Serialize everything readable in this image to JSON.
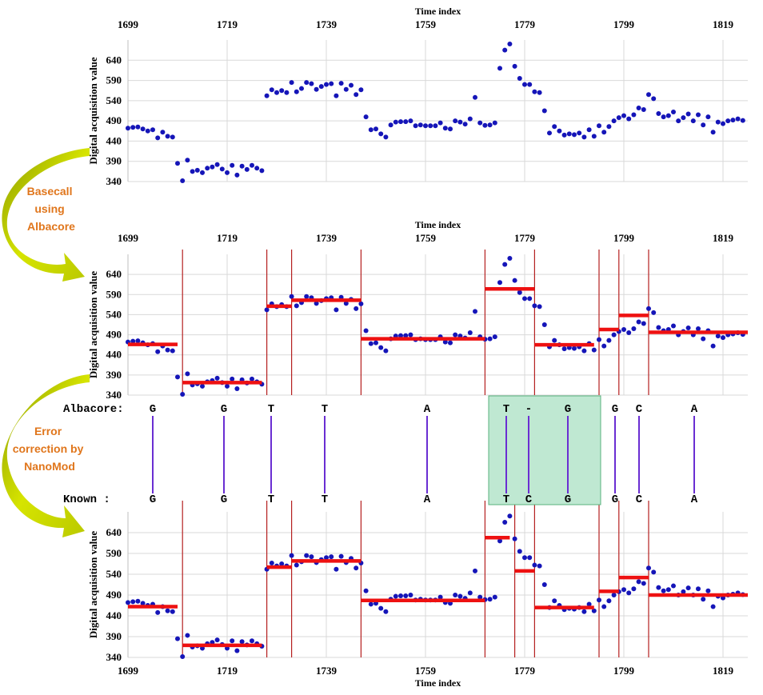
{
  "colors": {
    "points": "#1515b8",
    "segment": "#ee1111",
    "boundary": "#b52020",
    "grid": "#d9d9d9",
    "link": "#6a2ed2",
    "highlight_fill": "#bfe8d2",
    "highlight_stroke": "#58b27d",
    "arrow": "#c4d600",
    "annotation": "#e0761c"
  },
  "annotations": {
    "basecall": [
      "Basecall",
      "using",
      "Albacore"
    ],
    "correction": [
      "Error",
      "correction by",
      "NanoMod"
    ]
  },
  "sequences": {
    "albacore_label": "Albacore:",
    "known_label": "Known   :",
    "albacore": [
      "G",
      "G",
      "T",
      "T",
      "A",
      "T",
      "-",
      "G",
      "G",
      "C",
      "A"
    ],
    "known": [
      "G",
      "G",
      "T",
      "T",
      "A",
      "T",
      "C",
      "G",
      "G",
      "C",
      "A"
    ]
  },
  "chart_data": [
    {
      "type": "scatter",
      "xlabel": "Time index",
      "ylabel": "Digital acquisition value",
      "x_ticks": [
        1699,
        1719,
        1739,
        1759,
        1779,
        1799,
        1819
      ],
      "y_ticks": [
        340,
        390,
        440,
        490,
        540,
        590,
        640
      ],
      "xlim": [
        1699,
        1824
      ],
      "ylim": [
        340,
        690
      ],
      "grid": true,
      "series": [
        {
          "x": [
            1699,
            1700,
            1701,
            1702,
            1703,
            1704,
            1705,
            1706,
            1707,
            1708,
            1709,
            1710,
            1711,
            1712,
            1713,
            1714,
            1715,
            1716,
            1717,
            1718,
            1719,
            1720,
            1721,
            1722,
            1723,
            1724,
            1725,
            1726,
            1727,
            1728,
            1729,
            1730,
            1731,
            1732,
            1733,
            1734,
            1735,
            1736,
            1737,
            1738,
            1739,
            1740,
            1741,
            1742,
            1743,
            1744,
            1745,
            1746,
            1747,
            1748,
            1749,
            1750,
            1751,
            1752,
            1753,
            1754,
            1755,
            1756,
            1757,
            1758,
            1759,
            1760,
            1761,
            1762,
            1763,
            1764,
            1765,
            1766,
            1767,
            1768,
            1769,
            1770,
            1771,
            1772,
            1773,
            1774,
            1775,
            1776,
            1777,
            1778,
            1779,
            1780,
            1781,
            1782,
            1783,
            1784,
            1785,
            1786,
            1787,
            1788,
            1789,
            1790,
            1791,
            1792,
            1793,
            1794,
            1795,
            1796,
            1797,
            1798,
            1799,
            1800,
            1801,
            1802,
            1803,
            1804,
            1805,
            1806,
            1807,
            1808,
            1809,
            1810,
            1811,
            1812,
            1813,
            1814,
            1815,
            1816,
            1817,
            1818,
            1819,
            1820,
            1821,
            1822,
            1823
          ],
          "y": [
            472,
            474,
            475,
            470,
            465,
            468,
            448,
            462,
            452,
            450,
            385,
            342,
            393,
            365,
            368,
            362,
            373,
            376,
            382,
            371,
            362,
            380,
            356,
            378,
            370,
            380,
            373,
            367,
            552,
            567,
            560,
            565,
            560,
            585,
            562,
            570,
            585,
            582,
            568,
            575,
            580,
            582,
            552,
            583,
            568,
            578,
            555,
            567,
            500,
            468,
            470,
            458,
            450,
            480,
            487,
            488,
            488,
            490,
            478,
            480,
            478,
            478,
            478,
            485,
            472,
            470,
            490,
            487,
            482,
            495,
            548,
            485,
            479,
            480,
            485,
            620,
            665,
            680,
            625,
            595,
            580,
            580,
            562,
            560,
            515,
            460,
            476,
            465,
            455,
            458,
            456,
            460,
            450,
            468,
            452,
            478,
            462,
            476,
            490,
            498,
            503,
            495,
            505,
            522,
            518,
            555,
            545,
            508,
            500,
            503,
            512,
            490,
            498,
            507,
            490,
            505,
            480,
            500,
            462,
            487,
            483,
            490,
            492,
            495,
            491
          ]
        }
      ]
    },
    {
      "type": "scatter",
      "xlabel": "Time index",
      "ylabel": "Digital acquisition value",
      "x_ticks": [
        1699,
        1719,
        1739,
        1759,
        1779,
        1799,
        1819
      ],
      "y_ticks": [
        340,
        390,
        440,
        490,
        540,
        590,
        640
      ],
      "xlim": [
        1699,
        1824
      ],
      "ylim": [
        340,
        690
      ],
      "grid": true,
      "boundaries": [
        1710,
        1727,
        1732,
        1746,
        1771,
        1781,
        1794,
        1798,
        1804
      ],
      "segments": [
        {
          "x": [
            1699,
            1709
          ],
          "y": 466
        },
        {
          "x": [
            1710,
            1726
          ],
          "y": 371
        },
        {
          "x": [
            1727,
            1732
          ],
          "y": 561
        },
        {
          "x": [
            1732,
            1746
          ],
          "y": 576
        },
        {
          "x": [
            1746,
            1771
          ],
          "y": 480
        },
        {
          "x": [
            1771,
            1781
          ],
          "y": 604
        },
        {
          "x": [
            1781,
            1793
          ],
          "y": 465
        },
        {
          "x": [
            1794,
            1798
          ],
          "y": 503
        },
        {
          "x": [
            1798,
            1804
          ],
          "y": 538
        },
        {
          "x": [
            1804,
            1824
          ],
          "y": 496
        }
      ],
      "series": [
        {
          "x": [
            1699,
            1700,
            1701,
            1702,
            1703,
            1704,
            1705,
            1706,
            1707,
            1708,
            1709,
            1710,
            1711,
            1712,
            1713,
            1714,
            1715,
            1716,
            1717,
            1718,
            1719,
            1720,
            1721,
            1722,
            1723,
            1724,
            1725,
            1726,
            1727,
            1728,
            1729,
            1730,
            1731,
            1732,
            1733,
            1734,
            1735,
            1736,
            1737,
            1738,
            1739,
            1740,
            1741,
            1742,
            1743,
            1744,
            1745,
            1746,
            1747,
            1748,
            1749,
            1750,
            1751,
            1752,
            1753,
            1754,
            1755,
            1756,
            1757,
            1758,
            1759,
            1760,
            1761,
            1762,
            1763,
            1764,
            1765,
            1766,
            1767,
            1768,
            1769,
            1770,
            1771,
            1772,
            1773,
            1774,
            1775,
            1776,
            1777,
            1778,
            1779,
            1780,
            1781,
            1782,
            1783,
            1784,
            1785,
            1786,
            1787,
            1788,
            1789,
            1790,
            1791,
            1792,
            1793,
            1794,
            1795,
            1796,
            1797,
            1798,
            1799,
            1800,
            1801,
            1802,
            1803,
            1804,
            1805,
            1806,
            1807,
            1808,
            1809,
            1810,
            1811,
            1812,
            1813,
            1814,
            1815,
            1816,
            1817,
            1818,
            1819,
            1820,
            1821,
            1822,
            1823
          ],
          "y": [
            472,
            474,
            475,
            470,
            465,
            468,
            448,
            462,
            452,
            450,
            385,
            342,
            393,
            365,
            368,
            362,
            373,
            376,
            382,
            371,
            362,
            380,
            356,
            378,
            370,
            380,
            373,
            367,
            552,
            567,
            560,
            565,
            560,
            585,
            562,
            570,
            585,
            582,
            568,
            575,
            580,
            582,
            552,
            583,
            568,
            578,
            555,
            567,
            500,
            468,
            470,
            458,
            450,
            480,
            487,
            488,
            488,
            490,
            478,
            480,
            478,
            478,
            478,
            485,
            472,
            470,
            490,
            487,
            482,
            495,
            548,
            485,
            479,
            480,
            485,
            620,
            665,
            680,
            625,
            595,
            580,
            580,
            562,
            560,
            515,
            460,
            476,
            465,
            455,
            458,
            456,
            460,
            450,
            468,
            452,
            478,
            462,
            476,
            490,
            498,
            503,
            495,
            505,
            522,
            518,
            555,
            545,
            508,
            500,
            503,
            512,
            490,
            498,
            507,
            490,
            505,
            480,
            500,
            462,
            487,
            483,
            490,
            492,
            495,
            491
          ]
        }
      ]
    },
    {
      "type": "scatter",
      "xlabel": "Time index",
      "ylabel": "Digital acquisition value",
      "x_ticks": [
        1699,
        1719,
        1739,
        1759,
        1779,
        1799,
        1819
      ],
      "y_ticks": [
        340,
        390,
        440,
        490,
        540,
        590,
        640
      ],
      "xlim": [
        1699,
        1824
      ],
      "ylim": [
        340,
        690
      ],
      "grid": true,
      "boundaries": [
        1710,
        1727,
        1732,
        1746,
        1771,
        1777,
        1781,
        1794,
        1798,
        1804
      ],
      "segments": [
        {
          "x": [
            1699,
            1709
          ],
          "y": 462
        },
        {
          "x": [
            1710,
            1726
          ],
          "y": 369
        },
        {
          "x": [
            1727,
            1732
          ],
          "y": 557
        },
        {
          "x": [
            1732,
            1746
          ],
          "y": 572
        },
        {
          "x": [
            1746,
            1771
          ],
          "y": 477
        },
        {
          "x": [
            1771,
            1776
          ],
          "y": 628
        },
        {
          "x": [
            1777,
            1781
          ],
          "y": 548
        },
        {
          "x": [
            1781,
            1793
          ],
          "y": 460
        },
        {
          "x": [
            1794,
            1798
          ],
          "y": 499
        },
        {
          "x": [
            1798,
            1804
          ],
          "y": 532
        },
        {
          "x": [
            1804,
            1824
          ],
          "y": 490
        }
      ],
      "series": [
        {
          "x": [
            1699,
            1700,
            1701,
            1702,
            1703,
            1704,
            1705,
            1706,
            1707,
            1708,
            1709,
            1710,
            1711,
            1712,
            1713,
            1714,
            1715,
            1716,
            1717,
            1718,
            1719,
            1720,
            1721,
            1722,
            1723,
            1724,
            1725,
            1726,
            1727,
            1728,
            1729,
            1730,
            1731,
            1732,
            1733,
            1734,
            1735,
            1736,
            1737,
            1738,
            1739,
            1740,
            1741,
            1742,
            1743,
            1744,
            1745,
            1746,
            1747,
            1748,
            1749,
            1750,
            1751,
            1752,
            1753,
            1754,
            1755,
            1756,
            1757,
            1758,
            1759,
            1760,
            1761,
            1762,
            1763,
            1764,
            1765,
            1766,
            1767,
            1768,
            1769,
            1770,
            1771,
            1772,
            1773,
            1774,
            1775,
            1776,
            1777,
            1778,
            1779,
            1780,
            1781,
            1782,
            1783,
            1784,
            1785,
            1786,
            1787,
            1788,
            1789,
            1790,
            1791,
            1792,
            1793,
            1794,
            1795,
            1796,
            1797,
            1798,
            1799,
            1800,
            1801,
            1802,
            1803,
            1804,
            1805,
            1806,
            1807,
            1808,
            1809,
            1810,
            1811,
            1812,
            1813,
            1814,
            1815,
            1816,
            1817,
            1818,
            1819,
            1820,
            1821,
            1822,
            1823
          ],
          "y": [
            472,
            474,
            475,
            470,
            465,
            468,
            448,
            462,
            452,
            450,
            385,
            342,
            393,
            365,
            368,
            362,
            373,
            376,
            382,
            371,
            362,
            380,
            356,
            378,
            370,
            380,
            373,
            367,
            552,
            567,
            560,
            565,
            560,
            585,
            562,
            570,
            585,
            582,
            568,
            575,
            580,
            582,
            552,
            583,
            568,
            578,
            555,
            567,
            500,
            468,
            470,
            458,
            450,
            480,
            487,
            488,
            488,
            490,
            478,
            480,
            478,
            478,
            478,
            485,
            472,
            470,
            490,
            487,
            482,
            495,
            548,
            485,
            479,
            480,
            485,
            620,
            665,
            680,
            625,
            595,
            580,
            580,
            562,
            560,
            515,
            460,
            476,
            465,
            455,
            458,
            456,
            460,
            450,
            468,
            452,
            478,
            462,
            476,
            490,
            498,
            503,
            495,
            505,
            522,
            518,
            555,
            545,
            508,
            500,
            503,
            512,
            490,
            498,
            507,
            490,
            505,
            480,
            500,
            462,
            487,
            483,
            490,
            492,
            495,
            491
          ]
        }
      ]
    }
  ]
}
